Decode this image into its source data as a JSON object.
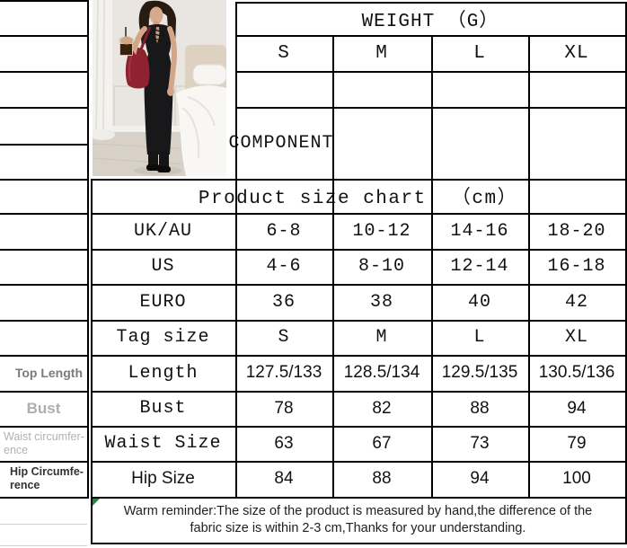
{
  "photo": {
    "alt": "Model wearing a black sleeveless lace-up front bodycon maxi dress with a burgundy shoulder bag, holding an iced drink in a white bedroom"
  },
  "weight_section": {
    "title": "WEIGHT （G）",
    "sizes": [
      "S",
      "M",
      "L",
      "XL"
    ],
    "component_label": "COMPONENT"
  },
  "size_chart": {
    "title": "Product size chart  （cm）",
    "rows": [
      {
        "label": "UK/AU",
        "values": [
          "6-8",
          "10-12",
          "14-16",
          "18-20"
        ]
      },
      {
        "label": "US",
        "values": [
          "4-6",
          "8-10",
          "12-14",
          "16-18"
        ]
      },
      {
        "label": "EURO",
        "values": [
          "36",
          "38",
          "40",
          "42"
        ]
      },
      {
        "label": "Tag size",
        "values": [
          "S",
          "M",
          "L",
          "XL"
        ]
      },
      {
        "label": "Length",
        "values": [
          "127.5/133",
          "128.5/134",
          "129.5/135",
          "130.5/136"
        ]
      },
      {
        "label": "Bust",
        "values": [
          "78",
          "82",
          "88",
          "94"
        ]
      },
      {
        "label": "Waist Size",
        "values": [
          "63",
          "67",
          "73",
          "79"
        ]
      },
      {
        "label": "Hip Size",
        "values": [
          "84",
          "88",
          "94",
          "100"
        ]
      }
    ]
  },
  "sidebar": {
    "labels": [
      "Top Length",
      "Bust",
      "Waist circumfer-\nence",
      "Hip Circumfe-\nrence"
    ]
  },
  "reminder": {
    "text": "Warm reminder:The size of the product is measured by hand,the difference of the\nfabric size is within 2-3 cm,Thanks for your understanding."
  },
  "colors": {
    "table_border": "#000000",
    "corner_marker_green": "#1f8a3a"
  }
}
